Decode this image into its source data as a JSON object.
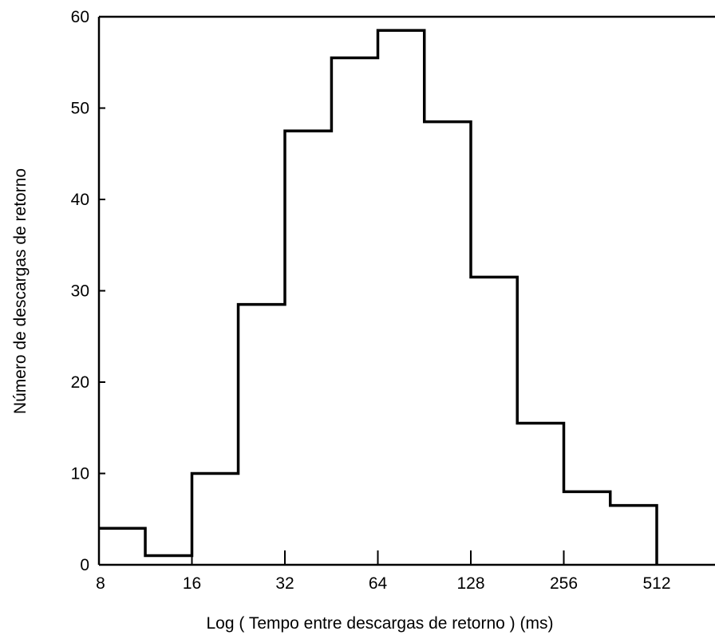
{
  "chart_data": {
    "type": "histogram",
    "title": "",
    "xlabel": "Log ( Tempo entre descargas de retorno )  (ms)",
    "ylabel": "Número de descargas de retorno",
    "x_scale": "log2",
    "xlim": [
      8,
      1024
    ],
    "ylim": [
      0,
      60
    ],
    "x_tick_values": [
      8,
      16,
      32,
      64,
      128,
      256,
      512
    ],
    "x_ticks": [
      "8",
      "16",
      "32",
      "64",
      "128",
      "256",
      "512"
    ],
    "y_tick_values": [
      0,
      10,
      20,
      30,
      40,
      50,
      60
    ],
    "y_ticks": [
      "0",
      "10",
      "20",
      "30",
      "40",
      "50",
      "60"
    ],
    "grid": false,
    "legend": "none",
    "bins": [
      {
        "x_start": 8,
        "x_end": 11.3,
        "count": 4
      },
      {
        "x_start": 11.3,
        "x_end": 16,
        "count": 1
      },
      {
        "x_start": 16,
        "x_end": 22.6,
        "count": 10
      },
      {
        "x_start": 22.6,
        "x_end": 32,
        "count": 28.5
      },
      {
        "x_start": 32,
        "x_end": 45.3,
        "count": 47.5
      },
      {
        "x_start": 45.3,
        "x_end": 64,
        "count": 55.5
      },
      {
        "x_start": 64,
        "x_end": 90.5,
        "count": 58.5
      },
      {
        "x_start": 90.5,
        "x_end": 128,
        "count": 48.5
      },
      {
        "x_start": 128,
        "x_end": 181,
        "count": 31.5
      },
      {
        "x_start": 181,
        "x_end": 256,
        "count": 15.5
      },
      {
        "x_start": 256,
        "x_end": 362,
        "count": 8
      },
      {
        "x_start": 362,
        "x_end": 512,
        "count": 6.5
      }
    ],
    "line_color": "#000000"
  }
}
